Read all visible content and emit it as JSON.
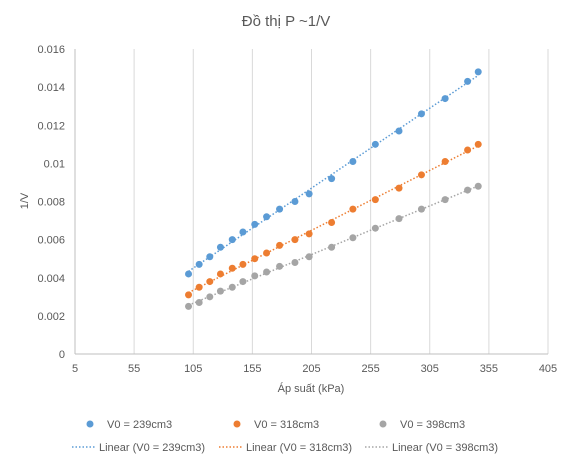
{
  "chart_data": {
    "type": "scatter",
    "title": "Đồ thị P ~1/V",
    "xlabel": "Áp suất (kPa)",
    "ylabel": "1/V",
    "xlim": [
      5,
      405
    ],
    "ylim": [
      0,
      0.016
    ],
    "x_ticks": [
      "5",
      "55",
      "105",
      "155",
      "205",
      "255",
      "305",
      "355",
      "405"
    ],
    "y_ticks": [
      "0",
      "0.002",
      "0.004",
      "0.006",
      "0.008",
      "0.01",
      "0.012",
      "0.014",
      "0.016"
    ],
    "grid": "vertical",
    "legend_position": "bottom",
    "series": [
      {
        "name": "V0 = 239cm3",
        "color": "#5b9bd5",
        "x": [
          101,
          110,
          119,
          128,
          138,
          147,
          157,
          167,
          178,
          191,
          203,
          222,
          240,
          259,
          279,
          298,
          318,
          337,
          346
        ],
        "y": [
          0.0042,
          0.0047,
          0.0051,
          0.0056,
          0.006,
          0.0064,
          0.0068,
          0.0072,
          0.0076,
          0.008,
          0.0084,
          0.0092,
          0.0101,
          0.011,
          0.0117,
          0.0126,
          0.0134,
          0.0143,
          0.0148
        ],
        "trendline_name": "Linear (V0 = 239cm3)"
      },
      {
        "name": "V0 = 318cm3",
        "color": "#ed7d31",
        "x": [
          101,
          110,
          119,
          128,
          138,
          147,
          157,
          167,
          178,
          191,
          203,
          222,
          240,
          259,
          279,
          298,
          318,
          337,
          346
        ],
        "y": [
          0.0031,
          0.0035,
          0.0038,
          0.0042,
          0.0045,
          0.0047,
          0.005,
          0.0053,
          0.0057,
          0.006,
          0.0063,
          0.0069,
          0.0076,
          0.0081,
          0.0087,
          0.0094,
          0.0101,
          0.0107,
          0.011
        ],
        "trendline_name": "Linear (V0 = 318cm3)"
      },
      {
        "name": "V0 = 398cm3",
        "color": "#a5a5a5",
        "x": [
          101,
          110,
          119,
          128,
          138,
          147,
          157,
          167,
          178,
          191,
          203,
          222,
          240,
          259,
          279,
          298,
          318,
          337,
          346
        ],
        "y": [
          0.0025,
          0.0027,
          0.003,
          0.0033,
          0.0035,
          0.0038,
          0.0041,
          0.0043,
          0.0046,
          0.0048,
          0.0051,
          0.0056,
          0.0061,
          0.0066,
          0.0071,
          0.0076,
          0.0081,
          0.0086,
          0.0088
        ],
        "trendline_name": "Linear (V0 = 398cm3)"
      }
    ]
  }
}
